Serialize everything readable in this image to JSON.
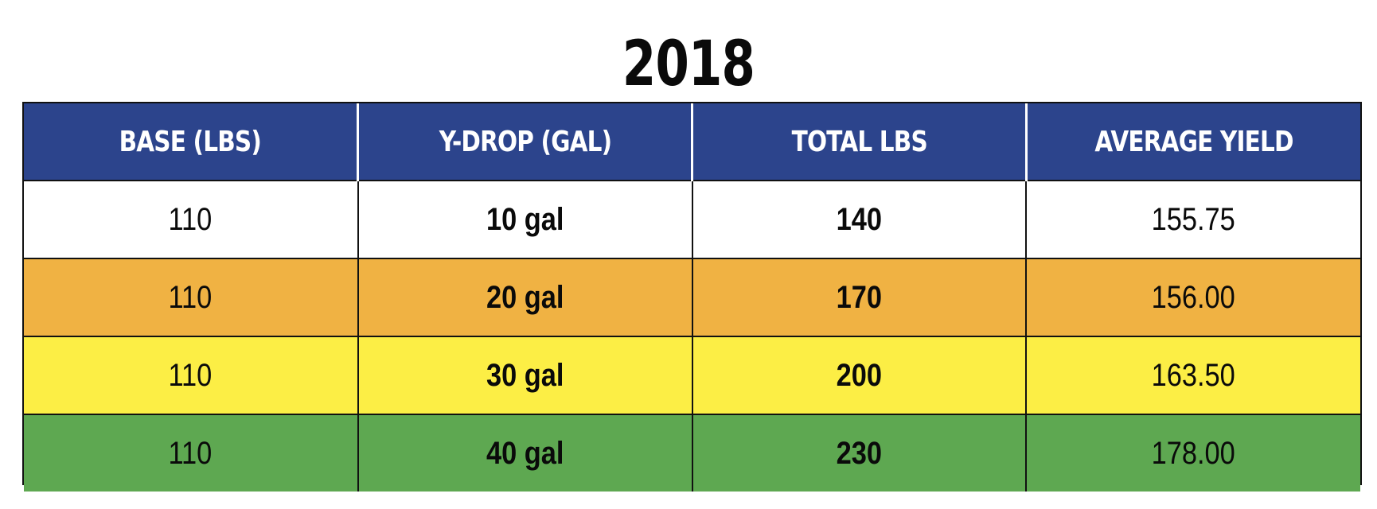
{
  "chart_data": {
    "type": "table",
    "title": "2018",
    "columns": [
      "BASE (LBS)",
      "Y-DROP (GAL)",
      "TOTAL LBS",
      "AVERAGE YIELD"
    ],
    "rows": [
      [
        "110",
        "10 gal",
        "140",
        "155.75"
      ],
      [
        "110",
        "20 gal",
        "170",
        "156.00"
      ],
      [
        "110",
        "30 gal",
        "200",
        "163.50"
      ],
      [
        "110",
        "40 gal",
        "230",
        "178.00"
      ]
    ],
    "row_colors": [
      "#ffffff",
      "#f0b243",
      "#fcee45",
      "#5ea851"
    ],
    "header_color": "#2c448c"
  }
}
